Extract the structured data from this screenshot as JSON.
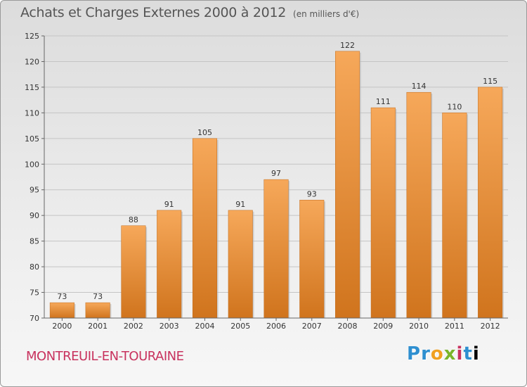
{
  "title": "Achats et Charges Externes 2000 à 2012",
  "unit": "(en milliers d'€)",
  "town": "MONTREUIL-EN-TOURAINE",
  "logo": [
    "P",
    "r",
    "o",
    "x",
    "i",
    "t",
    "i"
  ],
  "colors": {
    "bar_top": "#f6a85a",
    "bar_bottom": "#d0741d",
    "title": "#555555",
    "town": "#c8325e"
  },
  "chart_data": {
    "type": "bar",
    "categories": [
      "2000",
      "2001",
      "2002",
      "2003",
      "2004",
      "2005",
      "2006",
      "2007",
      "2008",
      "2009",
      "2010",
      "2011",
      "2012"
    ],
    "values": [
      73,
      73,
      88,
      91,
      105,
      91,
      97,
      93,
      122,
      111,
      114,
      110,
      115
    ],
    "ylim": [
      70,
      125
    ],
    "yticks": [
      70,
      75,
      80,
      85,
      90,
      95,
      100,
      105,
      110,
      115,
      120,
      125
    ],
    "grid": true,
    "data_labels": true
  }
}
